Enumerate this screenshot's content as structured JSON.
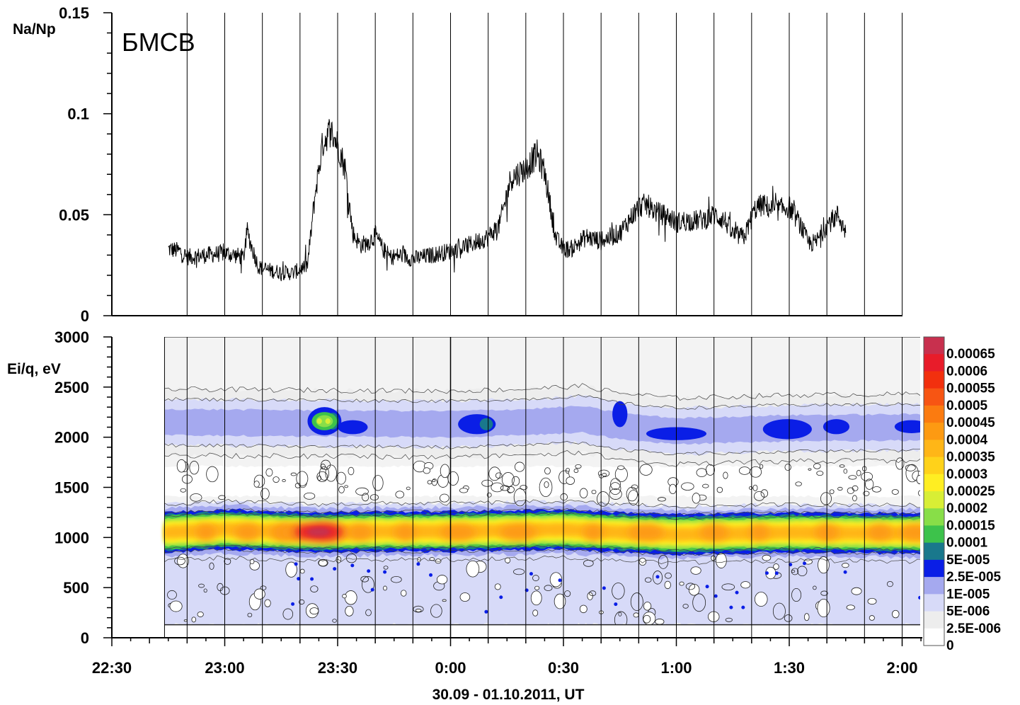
{
  "chart_data": [
    {
      "type": "line",
      "panel": "top",
      "annotation": "БМСВ",
      "ylabel": "Na/Np",
      "ylim": [
        0,
        0.15
      ],
      "ytick_labels": [
        "0",
        "0.05",
        "0.1",
        "0.15"
      ],
      "yticks": [
        0,
        0.05,
        0.1,
        0.15
      ],
      "x_unit": "minutes after 22:30 UT",
      "xlim": [
        0,
        195
      ],
      "grid_x": [
        20,
        30,
        40,
        50,
        60,
        70,
        80,
        90,
        100,
        110,
        120,
        130,
        140,
        150,
        160,
        170,
        180,
        190,
        200,
        210,
        220
      ],
      "series": [
        {
          "x": [
            15,
            18,
            20,
            25,
            30,
            35,
            36,
            37,
            39,
            43,
            48,
            52,
            54,
            56,
            58,
            60,
            62,
            64,
            66,
            68,
            70,
            72,
            74,
            77,
            80,
            85,
            90,
            95,
            100,
            103,
            106,
            110,
            113,
            115,
            118,
            120,
            122,
            124,
            126,
            130,
            135,
            140,
            142,
            145,
            148,
            150,
            152,
            155,
            158,
            160,
            163,
            165,
            168,
            171,
            173,
            176,
            180,
            183,
            185,
            187,
            190,
            193,
            195
          ],
          "y": [
            0.033,
            0.032,
            0.029,
            0.03,
            0.031,
            0.029,
            0.042,
            0.035,
            0.024,
            0.022,
            0.021,
            0.025,
            0.06,
            0.085,
            0.092,
            0.085,
            0.073,
            0.041,
            0.035,
            0.036,
            0.04,
            0.033,
            0.029,
            0.03,
            0.028,
            0.03,
            0.032,
            0.035,
            0.039,
            0.045,
            0.068,
            0.073,
            0.08,
            0.071,
            0.038,
            0.033,
            0.033,
            0.036,
            0.039,
            0.037,
            0.041,
            0.054,
            0.055,
            0.051,
            0.049,
            0.046,
            0.047,
            0.047,
            0.048,
            0.05,
            0.047,
            0.04,
            0.039,
            0.053,
            0.055,
            0.052,
            0.054,
            0.045,
            0.036,
            0.036,
            0.045,
            0.05,
            0.041
          ]
        }
      ]
    },
    {
      "type": "heatmap",
      "panel": "bottom",
      "ylabel": "Ei/q, eV",
      "ylim": [
        0,
        3000
      ],
      "ytick_labels": [
        "0",
        "500",
        "1000",
        "1500",
        "2000",
        "2500",
        "3000"
      ],
      "yticks": [
        0,
        500,
        1000,
        1500,
        2000,
        2500,
        3000
      ],
      "xlabel": "30.09 - 01.10.2011,  UT",
      "x_tick_labels": [
        "22:30",
        "23:00",
        "23:30",
        "0:00",
        "0:30",
        "1:00",
        "1:30",
        "2:00"
      ],
      "x_ticks": [
        0,
        30,
        60,
        90,
        120,
        150,
        180,
        210
      ],
      "xlim": [
        0,
        217
      ],
      "data_x_range": [
        14,
        217
      ],
      "colorbar_labels": [
        "0.00065",
        "0.0006",
        "0.00055",
        "0.0005",
        "0.00045",
        "0.0004",
        "0.00035",
        "0.0003",
        "0.00025",
        "0.0002",
        "0.00015",
        "0.0001",
        "5E-005",
        "2.5E-005",
        "1E-005",
        "5E-006",
        "2.5E-006",
        "0"
      ],
      "colorbar_colors": [
        "#c8304e",
        "#e81c2a",
        "#f2300e",
        "#f75513",
        "#fb7b10",
        "#fd9a12",
        "#ffb617",
        "#ffd21a",
        "#ffee22",
        "#d8ee35",
        "#88de48",
        "#3dc24b",
        "#19788c",
        "#0a1ee6",
        "#a5a9ef",
        "#d7daf8",
        "#ededed",
        "#ffffff"
      ],
      "bands": [
        {
          "center_x": [
            14,
            30,
            45,
            55,
            70,
            90,
            120,
            130,
            150,
            180,
            217
          ],
          "center_y": [
            1050,
            1080,
            1060,
            1050,
            1060,
            1060,
            1080,
            1060,
            1030,
            1050,
            1040
          ]
        },
        {
          "center_x": [
            14,
            50,
            90,
            110,
            125,
            135,
            150,
            180,
            217
          ],
          "center_y": [
            2150,
            2140,
            2130,
            2150,
            2180,
            2110,
            2060,
            2090,
            2100
          ]
        }
      ],
      "blobs": [
        {
          "x": [
            52,
            61
          ],
          "y": [
            2020,
            2300
          ],
          "peak": "0.00015"
        },
        {
          "x": [
            60,
            68
          ],
          "y": [
            2030,
            2170
          ],
          "peak": "2.5E-005"
        },
        {
          "x": [
            92,
            102
          ],
          "y": [
            2030,
            2230
          ],
          "peak": "5E-005"
        },
        {
          "x": [
            133,
            137
          ],
          "y": [
            2100,
            2360
          ],
          "peak": "2.5E-005"
        },
        {
          "x": [
            142,
            158
          ],
          "y": [
            1970,
            2100
          ],
          "peak": "2.5E-005"
        },
        {
          "x": [
            173,
            186
          ],
          "y": [
            1980,
            2180
          ],
          "peak": "2.5E-005"
        },
        {
          "x": [
            189,
            196
          ],
          "y": [
            2030,
            2180
          ],
          "peak": "2.5E-005"
        },
        {
          "x": [
            208,
            217
          ],
          "y": [
            2040,
            2170
          ],
          "peak": "2.5E-005"
        },
        {
          "x": [
            50,
            60
          ],
          "y": [
            1000,
            1110
          ],
          "peak": "0.00065"
        }
      ]
    }
  ]
}
